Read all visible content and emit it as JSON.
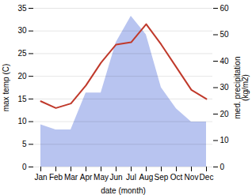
{
  "chart_data": {
    "type": "line",
    "categories": [
      "Jan",
      "Feb",
      "Mar",
      "Apr",
      "May",
      "Jun",
      "Jul",
      "Aug",
      "Sep",
      "Oct",
      "Nov",
      "Dec"
    ],
    "xlabel": "date (month)",
    "ylabel": "max temp (C)",
    "y2label": "med. precipitation\n(kg/m2)",
    "ylim": [
      0,
      35
    ],
    "yticks": [
      0,
      5,
      10,
      15,
      20,
      25,
      30,
      35
    ],
    "y2lim": [
      0,
      60
    ],
    "y2ticks": [
      0,
      10,
      20,
      30,
      40,
      50,
      60
    ],
    "grid": true,
    "series": [
      {
        "type": "area",
        "axis": "y2",
        "color": "#b8c4f0",
        "values": [
          16.0,
          14.0,
          14.0,
          28.0,
          28.0,
          47.0,
          57.0,
          50.0,
          30.0,
          22.0,
          17.0,
          17.0
        ]
      },
      {
        "type": "line",
        "color": "#c0392b",
        "values": [
          14.5,
          13.0,
          14.0,
          18.0,
          23.0,
          27.0,
          27.5,
          31.5,
          27.0,
          22.0,
          17.0,
          15.0
        ]
      }
    ]
  }
}
